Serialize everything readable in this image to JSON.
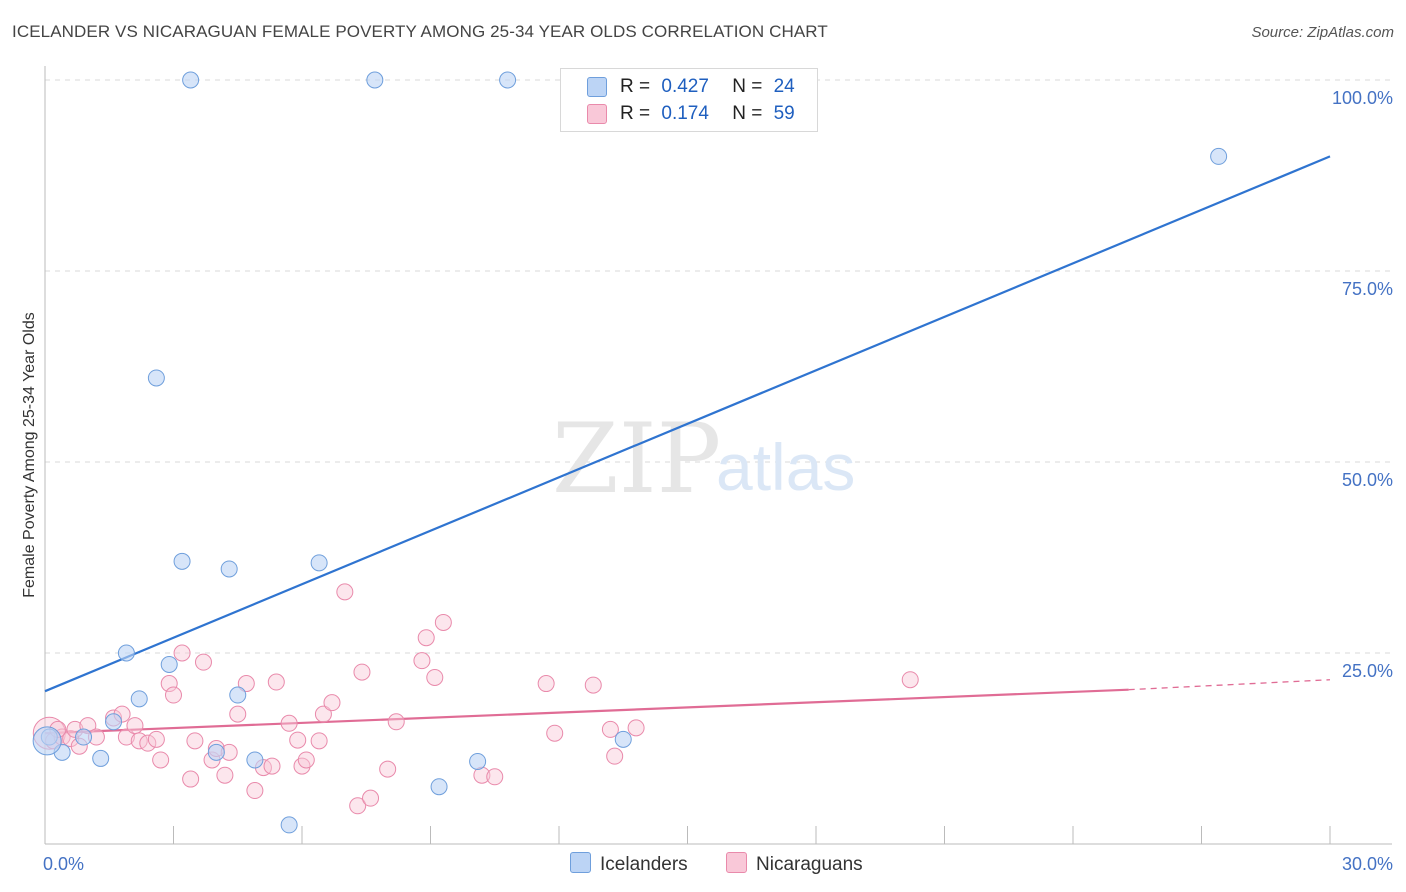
{
  "header": {
    "title": "ICELANDER VS NICARAGUAN FEMALE POVERTY AMONG 25-34 YEAR OLDS CORRELATION CHART",
    "source": "Source: ZipAtlas.com"
  },
  "watermark": {
    "zip": "ZIP",
    "atlas": "atlas"
  },
  "legend": {
    "rows": [
      {
        "r_label": "R =",
        "r_value": "0.427",
        "n_label": "N =",
        "n_value": "24"
      },
      {
        "r_label": "R =",
        "r_value": "0.174",
        "n_label": "N =",
        "n_value": "59"
      }
    ]
  },
  "bottom_legend": {
    "icelanders": "Icelanders",
    "nicaraguans": "Nicaraguans"
  },
  "colors": {
    "blue_fill": "#bcd4f5",
    "blue_stroke": "#6f9fdc",
    "blue_line": "#2f74d0",
    "pink_fill": "#f9c8d8",
    "pink_stroke": "#e98aab",
    "pink_line": "#e06c95",
    "grid": "#d9d9d9",
    "tick_label": "#4472c4"
  },
  "chart_data": {
    "type": "scatter",
    "title": "ICELANDER VS NICARAGUAN FEMALE POVERTY AMONG 25-34 YEAR OLDS CORRELATION CHART",
    "xlabel": "",
    "ylabel": "Female Poverty Among 25-34 Year Olds",
    "xlim": [
      0,
      30
    ],
    "ylim": [
      0,
      100
    ],
    "x_tick_labels": [
      {
        "value": 0,
        "label": "0.0%"
      },
      {
        "value": 30,
        "label": "30.0%"
      }
    ],
    "y_tick_labels": [
      {
        "value": 25,
        "label": "25.0%"
      },
      {
        "value": 50,
        "label": "50.0%"
      },
      {
        "value": 75,
        "label": "75.0%"
      },
      {
        "value": 100,
        "label": "100.0%"
      }
    ],
    "grid": true,
    "series": [
      {
        "name": "Icelanders",
        "color": "#6f9fdc",
        "r": 0.427,
        "n": 24,
        "points": [
          [
            0.1,
            14.0
          ],
          [
            0.4,
            12.0
          ],
          [
            0.9,
            14.0
          ],
          [
            1.3,
            11.2
          ],
          [
            1.6,
            16.0
          ],
          [
            1.9,
            25.0
          ],
          [
            2.2,
            19.0
          ],
          [
            2.6,
            61.0
          ],
          [
            2.9,
            23.5
          ],
          [
            3.2,
            37.0
          ],
          [
            3.4,
            100.0
          ],
          [
            4.0,
            12.0
          ],
          [
            4.3,
            36.0
          ],
          [
            4.5,
            19.5
          ],
          [
            4.9,
            11.0
          ],
          [
            5.7,
            2.5
          ],
          [
            6.4,
            36.8
          ],
          [
            7.7,
            100.0
          ],
          [
            9.2,
            7.5
          ],
          [
            10.1,
            10.8
          ],
          [
            10.8,
            100.0
          ],
          [
            13.5,
            13.7
          ],
          [
            27.4,
            90.0
          ],
          [
            0.05,
            13.5
          ]
        ],
        "trend": {
          "x": [
            0,
            30
          ],
          "y": [
            20.0,
            90.0
          ]
        }
      },
      {
        "name": "Nicaraguans",
        "color": "#e98aab",
        "r": 0.174,
        "n": 59,
        "points": [
          [
            0.1,
            14.5
          ],
          [
            0.2,
            13.5
          ],
          [
            0.4,
            14.0
          ],
          [
            0.6,
            13.8
          ],
          [
            0.7,
            15.0
          ],
          [
            0.8,
            12.8
          ],
          [
            1.0,
            15.5
          ],
          [
            1.2,
            14.0
          ],
          [
            1.6,
            16.5
          ],
          [
            1.8,
            17.0
          ],
          [
            1.9,
            14.0
          ],
          [
            2.1,
            15.5
          ],
          [
            2.2,
            13.5
          ],
          [
            2.4,
            13.2
          ],
          [
            2.6,
            13.7
          ],
          [
            2.7,
            11.0
          ],
          [
            2.9,
            21.0
          ],
          [
            3.0,
            19.5
          ],
          [
            3.2,
            25.0
          ],
          [
            3.4,
            8.5
          ],
          [
            3.5,
            13.5
          ],
          [
            3.7,
            23.8
          ],
          [
            3.9,
            11.0
          ],
          [
            4.0,
            12.5
          ],
          [
            4.2,
            9.0
          ],
          [
            4.3,
            12.0
          ],
          [
            4.5,
            17.0
          ],
          [
            4.7,
            21.0
          ],
          [
            4.9,
            7.0
          ],
          [
            5.1,
            10.0
          ],
          [
            5.3,
            10.2
          ],
          [
            5.4,
            21.2
          ],
          [
            5.7,
            15.8
          ],
          [
            5.9,
            13.6
          ],
          [
            6.0,
            10.2
          ],
          [
            6.1,
            11.0
          ],
          [
            6.4,
            13.5
          ],
          [
            6.5,
            17.0
          ],
          [
            6.7,
            18.5
          ],
          [
            7.0,
            33.0
          ],
          [
            7.3,
            5.0
          ],
          [
            7.4,
            22.5
          ],
          [
            7.6,
            6.0
          ],
          [
            8.0,
            9.8
          ],
          [
            8.2,
            16.0
          ],
          [
            8.8,
            24.0
          ],
          [
            8.9,
            27.0
          ],
          [
            9.1,
            21.8
          ],
          [
            9.3,
            29.0
          ],
          [
            10.2,
            9.0
          ],
          [
            10.5,
            8.8
          ],
          [
            11.7,
            21.0
          ],
          [
            11.9,
            14.5
          ],
          [
            12.8,
            20.8
          ],
          [
            13.2,
            15.0
          ],
          [
            13.3,
            11.5
          ],
          [
            13.8,
            15.2
          ],
          [
            20.2,
            21.5
          ],
          [
            0.3,
            15.0
          ]
        ],
        "trend": {
          "x": [
            0,
            25.3
          ],
          "y": [
            14.5,
            20.2
          ]
        },
        "trend_dashed": {
          "x": [
            25.3,
            30
          ],
          "y": [
            20.2,
            21.5
          ]
        }
      }
    ]
  }
}
